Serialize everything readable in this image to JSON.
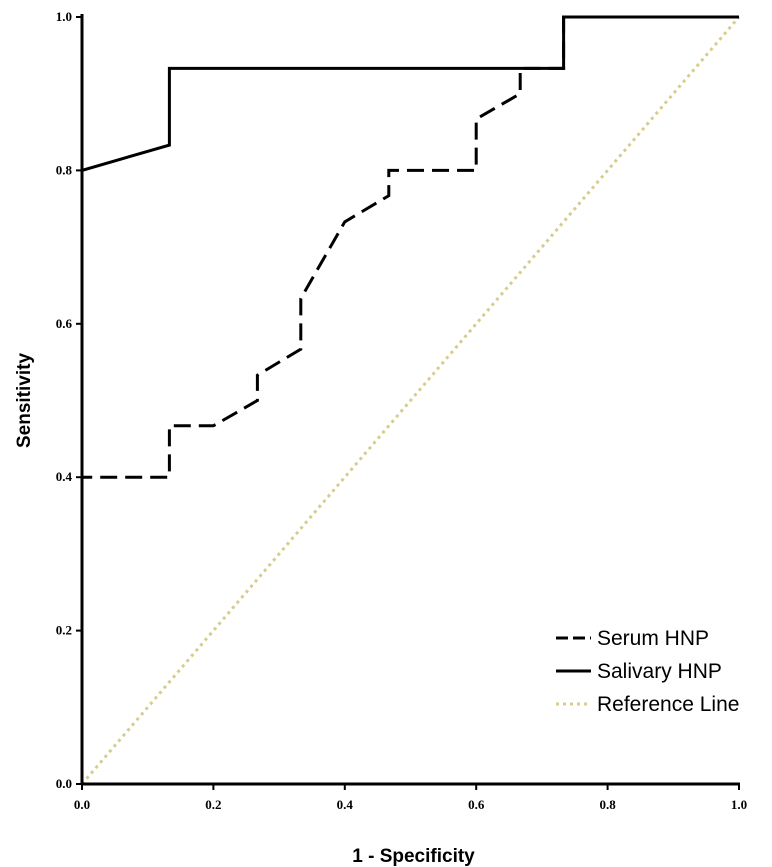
{
  "chart_data": {
    "type": "line",
    "title": "",
    "xlabel": "1 - Specificity",
    "ylabel": "Sensitivity",
    "xlim": [
      0,
      1
    ],
    "ylim": [
      0,
      1
    ],
    "xticks": [
      "0.0",
      "0.2",
      "0.4",
      "0.6",
      "0.8",
      "1.0"
    ],
    "yticks": [
      "0.0",
      "0.2",
      "0.4",
      "0.6",
      "0.8",
      "1.0"
    ],
    "grid": false,
    "legend_position": "bottom-right",
    "series": [
      {
        "name": "Serum HNP",
        "style": "dashed",
        "color": "#000000",
        "points": [
          [
            0.0,
            0.0
          ],
          [
            0.0,
            0.4
          ],
          [
            0.133,
            0.4
          ],
          [
            0.133,
            0.467
          ],
          [
            0.2,
            0.467
          ],
          [
            0.267,
            0.5
          ],
          [
            0.267,
            0.533
          ],
          [
            0.333,
            0.567
          ],
          [
            0.333,
            0.633
          ],
          [
            0.4,
            0.733
          ],
          [
            0.467,
            0.767
          ],
          [
            0.467,
            0.8
          ],
          [
            0.6,
            0.8
          ],
          [
            0.6,
            0.867
          ],
          [
            0.667,
            0.9
          ],
          [
            0.667,
            0.933
          ],
          [
            0.733,
            0.933
          ],
          [
            0.733,
            1.0
          ],
          [
            1.0,
            1.0
          ]
        ]
      },
      {
        "name": "Salivary HNP",
        "style": "solid",
        "color": "#000000",
        "points": [
          [
            0.0,
            0.0
          ],
          [
            0.0,
            0.8
          ],
          [
            0.133,
            0.833
          ],
          [
            0.133,
            0.933
          ],
          [
            0.733,
            0.933
          ],
          [
            0.733,
            1.0
          ],
          [
            1.0,
            1.0
          ]
        ]
      },
      {
        "name": "Reference Line",
        "style": "dotted",
        "color": "#d8cc8c",
        "points": [
          [
            0.0,
            0.0
          ],
          [
            1.0,
            1.0
          ]
        ]
      }
    ]
  }
}
